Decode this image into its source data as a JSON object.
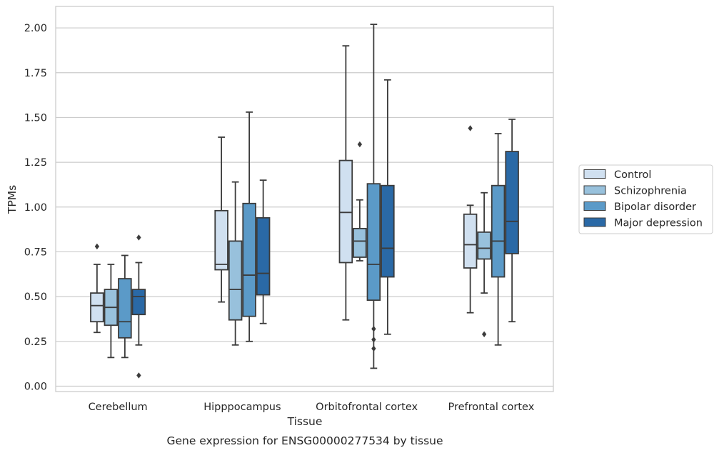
{
  "chart_data": {
    "type": "box",
    "xlabel": "Tissue",
    "ylabel": "TPMs",
    "caption": "Gene expression for ENSG00000277534 by tissue",
    "ylim": [
      -0.03,
      2.12
    ],
    "yticks": [
      "0.00",
      "0.25",
      "0.50",
      "0.75",
      "1.00",
      "1.25",
      "1.50",
      "1.75",
      "2.00"
    ],
    "grid": true,
    "legend_position": "right",
    "categories": [
      "Cerebellum",
      "Hipppocampus",
      "Orbitofrontal cortex",
      "Prefrontal cortex"
    ],
    "series": [
      {
        "name": "Control",
        "color": "#d0e0f0",
        "boxes": [
          {
            "whislo": 0.3,
            "q1": 0.36,
            "med": 0.45,
            "q3": 0.52,
            "whishi": 0.68,
            "fliers": [
              0.78
            ]
          },
          {
            "whislo": 0.47,
            "q1": 0.65,
            "med": 0.68,
            "q3": 0.98,
            "whishi": 1.39,
            "fliers": []
          },
          {
            "whislo": 0.37,
            "q1": 0.69,
            "med": 0.97,
            "q3": 1.26,
            "whishi": 1.9,
            "fliers": []
          },
          {
            "whislo": 0.41,
            "q1": 0.66,
            "med": 0.79,
            "q3": 0.96,
            "whishi": 1.01,
            "fliers": [
              1.44
            ]
          }
        ]
      },
      {
        "name": "Schizophrenia",
        "color": "#98c1dc",
        "boxes": [
          {
            "whislo": 0.16,
            "q1": 0.34,
            "med": 0.44,
            "q3": 0.54,
            "whishi": 0.68,
            "fliers": []
          },
          {
            "whislo": 0.23,
            "q1": 0.37,
            "med": 0.54,
            "q3": 0.81,
            "whishi": 1.14,
            "fliers": []
          },
          {
            "whislo": 0.7,
            "q1": 0.72,
            "med": 0.81,
            "q3": 0.88,
            "whishi": 1.04,
            "fliers": [
              1.35
            ]
          },
          {
            "whislo": 0.52,
            "q1": 0.71,
            "med": 0.77,
            "q3": 0.86,
            "whishi": 1.08,
            "fliers": [
              0.29
            ]
          }
        ]
      },
      {
        "name": "Bipolar disorder",
        "color": "#5b9ac8",
        "boxes": [
          {
            "whislo": 0.16,
            "q1": 0.27,
            "med": 0.36,
            "q3": 0.6,
            "whishi": 0.73,
            "fliers": []
          },
          {
            "whislo": 0.25,
            "q1": 0.39,
            "med": 0.62,
            "q3": 1.02,
            "whishi": 1.53,
            "fliers": []
          },
          {
            "whislo": 0.1,
            "q1": 0.48,
            "med": 0.68,
            "q3": 1.13,
            "whishi": 2.02,
            "fliers": [
              0.32,
              0.26,
              0.21
            ]
          },
          {
            "whislo": 0.23,
            "q1": 0.61,
            "med": 0.81,
            "q3": 1.12,
            "whishi": 1.41,
            "fliers": []
          }
        ]
      },
      {
        "name": "Major depression",
        "color": "#2a69a6",
        "boxes": [
          {
            "whislo": 0.23,
            "q1": 0.4,
            "med": 0.5,
            "q3": 0.54,
            "whishi": 0.69,
            "fliers": [
              0.83,
              0.06
            ]
          },
          {
            "whislo": 0.35,
            "q1": 0.51,
            "med": 0.63,
            "q3": 0.94,
            "whishi": 1.15,
            "fliers": []
          },
          {
            "whislo": 0.29,
            "q1": 0.61,
            "med": 0.77,
            "q3": 1.12,
            "whishi": 1.71,
            "fliers": []
          },
          {
            "whislo": 0.36,
            "q1": 0.74,
            "med": 0.92,
            "q3": 1.31,
            "whishi": 1.49,
            "fliers": []
          }
        ]
      }
    ]
  }
}
